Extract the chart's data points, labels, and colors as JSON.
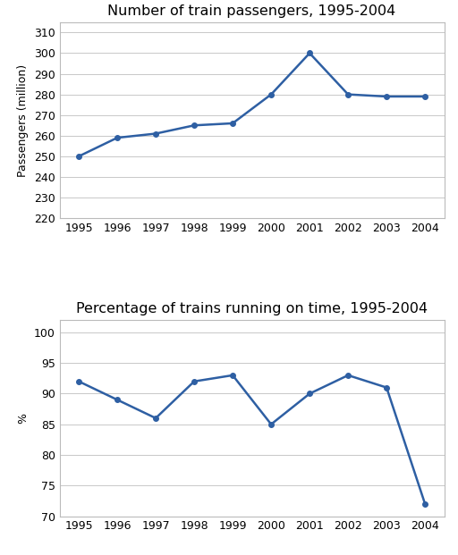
{
  "chart1": {
    "title": "Number of train passengers, 1995-2004",
    "years": [
      1995,
      1996,
      1997,
      1998,
      1999,
      2000,
      2001,
      2002,
      2003,
      2004
    ],
    "values": [
      250,
      259,
      261,
      265,
      266,
      280,
      300,
      280,
      279,
      279
    ],
    "ylabel": "Passengers (million)",
    "ylim": [
      220,
      315
    ],
    "yticks": [
      220,
      230,
      240,
      250,
      260,
      270,
      280,
      290,
      300,
      310
    ],
    "line_color": "#2E5FA3",
    "marker": "o",
    "markersize": 4,
    "linewidth": 1.8
  },
  "chart2": {
    "title": "Percentage of trains running on time, 1995-2004",
    "years": [
      1995,
      1996,
      1997,
      1998,
      1999,
      2000,
      2001,
      2002,
      2003,
      2004
    ],
    "values": [
      92,
      89,
      86,
      92,
      93,
      85,
      90,
      93,
      91,
      72
    ],
    "ylabel": "%",
    "ylim": [
      70,
      102
    ],
    "yticks": [
      70,
      75,
      80,
      85,
      90,
      95,
      100
    ],
    "line_color": "#2E5FA3",
    "marker": "o",
    "markersize": 4,
    "linewidth": 1.8
  },
  "background_color": "#FFFFFF",
  "plot_bg_color": "#FFFFFF",
  "grid_color": "#C8C8C8",
  "spine_color": "#BBBBBB",
  "title_fontsize": 11.5,
  "label_fontsize": 9,
  "tick_fontsize": 9
}
